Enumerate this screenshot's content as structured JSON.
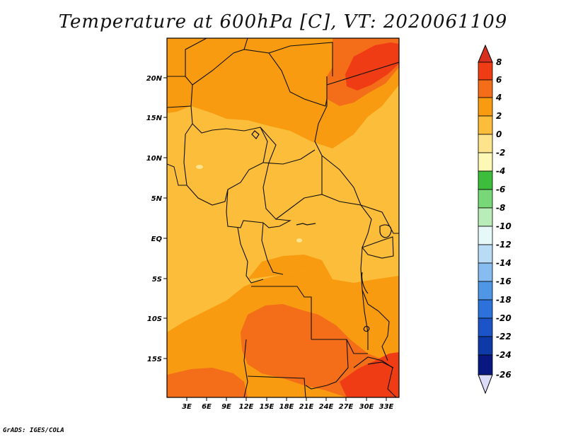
{
  "title": "Temperature at 600hPa [C], VT: 2020061109",
  "credit": "GrADS: IGES/COLA",
  "map": {
    "lat_labels": [
      "20N",
      "15N",
      "10N",
      "5N",
      "EQ",
      "5S",
      "10S",
      "15S"
    ],
    "lon_labels": [
      "3E",
      "6E",
      "9E",
      "12E",
      "15E",
      "18E",
      "21E",
      "24E",
      "27E",
      "30E",
      "33E"
    ]
  },
  "colorbar": {
    "labels": [
      "8",
      "6",
      "4",
      "2",
      "0",
      "-2",
      "-4",
      "-6",
      "-8",
      "-10",
      "-12",
      "-14",
      "-16",
      "-18",
      "-20",
      "-22",
      "-24",
      "-26"
    ],
    "colors": {
      "above_8": "#d7301f",
      "6_8": "#f03c14",
      "4_6": "#f46d19",
      "2_4": "#f99b10",
      "0_2": "#fbbd3a",
      "m2_0": "#fde38c",
      "m4_m2": "#fdf8b5",
      "m6_m4": "#3cbd3c",
      "m8_m6": "#78d878",
      "m10_m8": "#b8ecb8",
      "m12_m10": "#e6f8f8",
      "m14_m12": "#b8dcf6",
      "m16_m14": "#86bcf0",
      "m18_m16": "#4f96e6",
      "m20_m18": "#2c72da",
      "m22_m20": "#1c54c8",
      "m24_m22": "#0e3aa8",
      "m26_m24": "#081880",
      "below_m26": "#dcdcf8"
    }
  }
}
